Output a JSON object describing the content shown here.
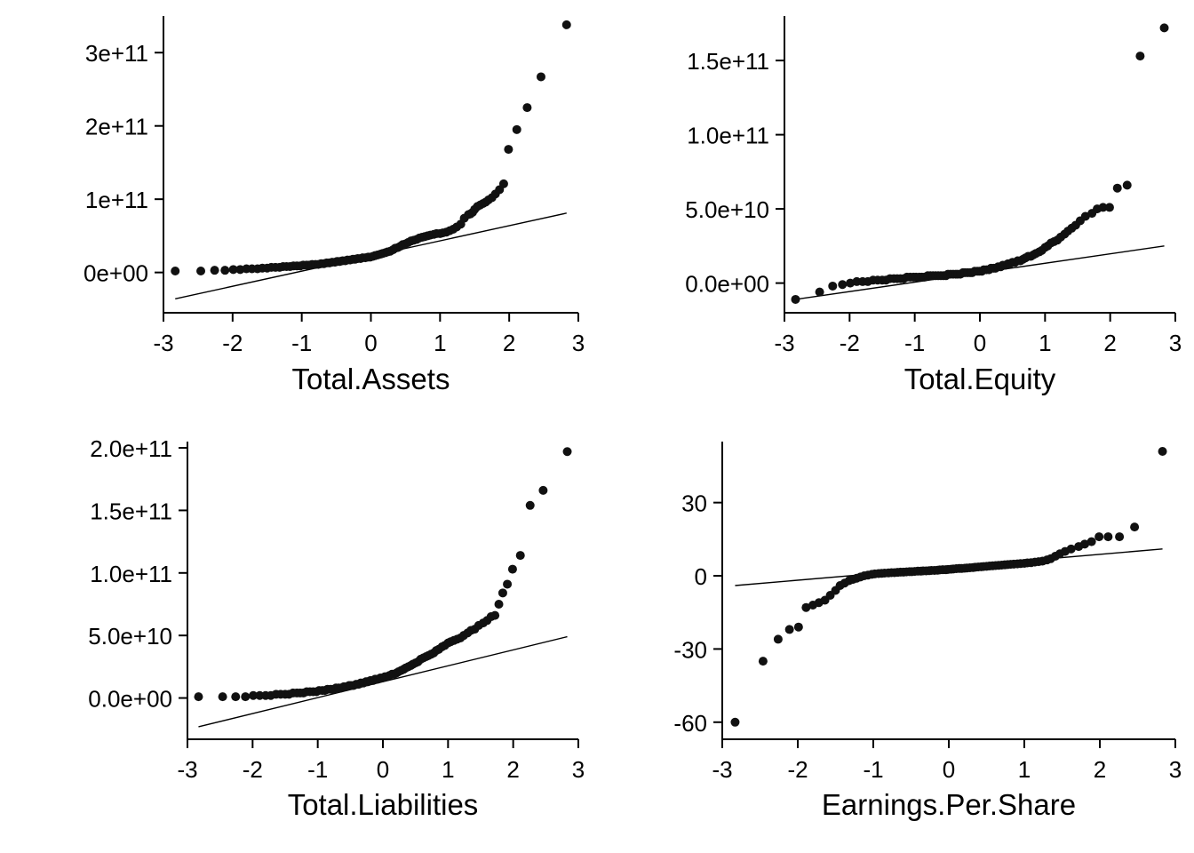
{
  "chart_data": [
    {
      "type": "scatter",
      "xlabel": "Total.Assets",
      "ylabel": "",
      "xticks": [
        "-3",
        "-2",
        "-1",
        "0",
        "1",
        "2",
        "3"
      ],
      "yticks": [
        "0e+00",
        "1e+11",
        "2e+11",
        "3e+11"
      ],
      "xlim": [
        -3.0,
        3.0
      ],
      "ylim": [
        -55000000000.0,
        350000000000.0
      ],
      "reference_line": [
        [
          -2.83,
          -36000000000.0
        ],
        [
          2.83,
          81000000000.0
        ]
      ],
      "points_x": [
        -2.83,
        -2.46,
        -2.26,
        -2.11,
        -1.99,
        -1.89,
        -1.8,
        -1.72,
        -1.64,
        -1.57,
        -1.5,
        -1.44,
        -1.38,
        -1.32,
        -1.27,
        -1.22,
        -1.17,
        -1.12,
        -1.07,
        -1.02,
        -0.98,
        -0.93,
        -0.89,
        -0.85,
        -0.8,
        -0.76,
        -0.72,
        -0.68,
        -0.64,
        -0.6,
        -0.56,
        -0.52,
        -0.49,
        -0.45,
        -0.41,
        -0.37,
        -0.34,
        -0.3,
        -0.26,
        -0.23,
        -0.19,
        -0.15,
        -0.12,
        -0.08,
        -0.04,
        -0.01,
        0.03,
        0.06,
        0.1,
        0.14,
        0.17,
        0.21,
        0.24,
        0.28,
        0.32,
        0.35,
        0.39,
        0.43,
        0.46,
        0.5,
        0.54,
        0.58,
        0.62,
        0.66,
        0.7,
        0.74,
        0.78,
        0.82,
        0.86,
        0.91,
        0.95,
        1.0,
        1.04,
        1.09,
        1.14,
        1.19,
        1.24,
        1.3,
        1.35,
        1.41,
        1.44,
        1.47,
        1.5,
        1.54,
        1.58,
        1.62,
        1.66,
        1.7,
        1.75,
        1.8,
        1.86,
        1.92,
        1.99,
        2.11,
        2.26,
        2.46,
        2.83
      ],
      "points_y": [
        2000000000.0,
        2000000000.0,
        3000000000.0,
        3000000000.0,
        4000000000.0,
        4000000000.0,
        5000000000.0,
        5000000000.0,
        5000000000.0,
        6000000000.0,
        6000000000.0,
        7000000000.0,
        7000000000.0,
        7000000000.0,
        8000000000.0,
        8000000000.0,
        8000000000.0,
        9000000000.0,
        9000000000.0,
        9000000000.0,
        10000000000.0,
        10000000000.0,
        10000000000.0,
        11000000000.0,
        11000000000.0,
        11000000000.0,
        12000000000.0,
        12000000000.0,
        13000000000.0,
        13000000000.0,
        14000000000.0,
        14000000000.0,
        15000000000.0,
        15000000000.0,
        16000000000.0,
        16000000000.0,
        17000000000.0,
        17000000000.0,
        18000000000.0,
        18000000000.0,
        19000000000.0,
        19000000000.0,
        20000000000.0,
        20000000000.0,
        21000000000.0,
        21000000000.0,
        22000000000.0,
        23000000000.0,
        24000000000.0,
        25000000000.0,
        26000000000.0,
        27000000000.0,
        28000000000.0,
        29000000000.0,
        31000000000.0,
        33000000000.0,
        34000000000.0,
        36000000000.0,
        38000000000.0,
        39000000000.0,
        41000000000.0,
        43000000000.0,
        44000000000.0,
        45000000000.0,
        47000000000.0,
        48000000000.0,
        49000000000.0,
        50000000000.0,
        51000000000.0,
        52000000000.0,
        53000000000.0,
        53000000000.0,
        54000000000.0,
        55000000000.0,
        57000000000.0,
        59000000000.0,
        62000000000.0,
        66000000000.0,
        74000000000.0,
        79000000000.0,
        80000000000.0,
        82000000000.0,
        86000000000.0,
        90000000000.0,
        92000000000.0,
        94000000000.0,
        96000000000.0,
        99000000000.0,
        102000000000.0,
        107000000000.0,
        113000000000.0,
        121000000000.0,
        168000000000.0,
        195000000000.0,
        225000000000.0,
        267000000000.0,
        338000000000.0
      ]
    },
    {
      "type": "scatter",
      "xlabel": "Total.Equity",
      "ylabel": "",
      "xticks": [
        "-3",
        "-2",
        "-1",
        "0",
        "1",
        "2",
        "3"
      ],
      "yticks": [
        "0.0e+00",
        "5.0e+10",
        "1.0e+11",
        "1.5e+11"
      ],
      "xlim": [
        -3.0,
        3.0
      ],
      "ylim": [
        -20000000000.0,
        180000000000.0
      ],
      "reference_line": [
        [
          -2.83,
          -11000000000.0
        ],
        [
          2.83,
          25000000000.0
        ]
      ],
      "points_x": [
        -2.83,
        -2.46,
        -2.26,
        -2.11,
        -1.99,
        -1.89,
        -1.8,
        -1.72,
        -1.64,
        -1.57,
        -1.5,
        -1.44,
        -1.38,
        -1.32,
        -1.27,
        -1.22,
        -1.17,
        -1.12,
        -1.07,
        -1.02,
        -0.98,
        -0.93,
        -0.89,
        -0.85,
        -0.8,
        -0.76,
        -0.72,
        -0.68,
        -0.64,
        -0.6,
        -0.56,
        -0.52,
        -0.49,
        -0.45,
        -0.41,
        -0.37,
        -0.34,
        -0.3,
        -0.26,
        -0.23,
        -0.19,
        -0.15,
        -0.12,
        -0.08,
        -0.04,
        -0.01,
        0.03,
        0.06,
        0.1,
        0.14,
        0.17,
        0.21,
        0.24,
        0.28,
        0.32,
        0.35,
        0.39,
        0.43,
        0.46,
        0.5,
        0.54,
        0.58,
        0.62,
        0.66,
        0.7,
        0.74,
        0.78,
        0.82,
        0.86,
        0.91,
        0.95,
        1.0,
        1.04,
        1.09,
        1.14,
        1.19,
        1.24,
        1.3,
        1.35,
        1.41,
        1.47,
        1.54,
        1.62,
        1.72,
        1.8,
        1.89,
        1.99,
        2.11,
        2.26,
        2.46,
        2.83
      ],
      "points_y": [
        -11000000000.0,
        -6000000000.0,
        -2000000000.0,
        -1000000000.0,
        0.0,
        1000000000.0,
        1000000000.0,
        1000000000.0,
        2000000000.0,
        2000000000.0,
        2000000000.0,
        2000000000.0,
        3000000000.0,
        3000000000.0,
        3000000000.0,
        3000000000.0,
        3000000000.0,
        4000000000.0,
        4000000000.0,
        4000000000.0,
        4000000000.0,
        4000000000.0,
        4000000000.0,
        4000000000.0,
        5000000000.0,
        5000000000.0,
        5000000000.0,
        5000000000.0,
        5000000000.0,
        5000000000.0,
        5000000000.0,
        5000000000.0,
        6000000000.0,
        6000000000.0,
        6000000000.0,
        6000000000.0,
        6000000000.0,
        6000000000.0,
        7000000000.0,
        7000000000.0,
        7000000000.0,
        7000000000.0,
        7000000000.0,
        8000000000.0,
        8000000000.0,
        8000000000.0,
        8000000000.0,
        9000000000.0,
        9000000000.0,
        9000000000.0,
        10000000000.0,
        10000000000.0,
        10000000000.0,
        11000000000.0,
        11000000000.0,
        12000000000.0,
        12000000000.0,
        13000000000.0,
        13000000000.0,
        14000000000.0,
        14000000000.0,
        15000000000.0,
        15000000000.0,
        16000000000.0,
        17000000000.0,
        18000000000.0,
        18000000000.0,
        19000000000.0,
        20000000000.0,
        21000000000.0,
        22000000000.0,
        24000000000.0,
        25000000000.0,
        27000000000.0,
        28000000000.0,
        29000000000.0,
        31000000000.0,
        33000000000.0,
        35000000000.0,
        37000000000.0,
        39000000000.0,
        42000000000.0,
        45000000000.0,
        47000000000.0,
        50000000000.0,
        51000000000.0,
        51000000000.0,
        64000000000.0,
        66000000000.0,
        153000000000.0,
        172000000000.0
      ]
    },
    {
      "type": "scatter",
      "xlabel": "Total.Liabilities",
      "ylabel": "",
      "xticks": [
        "-3",
        "-2",
        "-1",
        "0",
        "1",
        "2",
        "3"
      ],
      "yticks": [
        "0.0e+00",
        "5.0e+10",
        "1.0e+11",
        "1.5e+11",
        "2.0e+11"
      ],
      "xlim": [
        -3.0,
        3.0
      ],
      "ylim": [
        -33000000000.0,
        205000000000.0
      ],
      "reference_line": [
        [
          -2.83,
          -23000000000.0
        ],
        [
          2.83,
          49000000000.0
        ]
      ],
      "points_x": [
        -2.83,
        -2.46,
        -2.26,
        -2.11,
        -1.99,
        -1.89,
        -1.8,
        -1.72,
        -1.64,
        -1.57,
        -1.5,
        -1.44,
        -1.38,
        -1.32,
        -1.27,
        -1.22,
        -1.17,
        -1.12,
        -1.07,
        -1.02,
        -0.98,
        -0.93,
        -0.89,
        -0.85,
        -0.8,
        -0.76,
        -0.72,
        -0.68,
        -0.64,
        -0.6,
        -0.56,
        -0.52,
        -0.49,
        -0.45,
        -0.41,
        -0.37,
        -0.34,
        -0.3,
        -0.26,
        -0.23,
        -0.19,
        -0.15,
        -0.12,
        -0.08,
        -0.04,
        -0.01,
        0.03,
        0.06,
        0.1,
        0.14,
        0.17,
        0.21,
        0.24,
        0.28,
        0.32,
        0.35,
        0.39,
        0.43,
        0.46,
        0.5,
        0.54,
        0.58,
        0.62,
        0.66,
        0.7,
        0.74,
        0.78,
        0.82,
        0.86,
        0.91,
        0.95,
        1.0,
        1.04,
        1.09,
        1.14,
        1.19,
        1.24,
        1.3,
        1.35,
        1.41,
        1.47,
        1.54,
        1.6,
        1.66,
        1.72,
        1.78,
        1.84,
        1.91,
        1.99,
        2.11,
        2.26,
        2.46,
        2.83
      ],
      "points_y": [
        1000000000.0,
        1000000000.0,
        1000000000.0,
        1000000000.0,
        2000000000.0,
        2000000000.0,
        2000000000.0,
        2000000000.0,
        3000000000.0,
        3000000000.0,
        3000000000.0,
        3000000000.0,
        4000000000.0,
        4000000000.0,
        4000000000.0,
        4000000000.0,
        5000000000.0,
        5000000000.0,
        5000000000.0,
        5000000000.0,
        6000000000.0,
        6000000000.0,
        6000000000.0,
        7000000000.0,
        7000000000.0,
        7000000000.0,
        8000000000.0,
        8000000000.0,
        8000000000.0,
        9000000000.0,
        9000000000.0,
        10000000000.0,
        10000000000.0,
        10000000000.0,
        11000000000.0,
        11000000000.0,
        12000000000.0,
        12000000000.0,
        13000000000.0,
        13000000000.0,
        14000000000.0,
        14000000000.0,
        15000000000.0,
        15000000000.0,
        16000000000.0,
        16000000000.0,
        17000000000.0,
        17000000000.0,
        18000000000.0,
        19000000000.0,
        19000000000.0,
        20000000000.0,
        21000000000.0,
        22000000000.0,
        23000000000.0,
        24000000000.0,
        25000000000.0,
        26000000000.0,
        27000000000.0,
        28000000000.0,
        29000000000.0,
        31000000000.0,
        32000000000.0,
        33000000000.0,
        34000000000.0,
        35000000000.0,
        36000000000.0,
        38000000000.0,
        39000000000.0,
        41000000000.0,
        42000000000.0,
        44000000000.0,
        45000000000.0,
        46000000000.0,
        47000000000.0,
        48000000000.0,
        50000000000.0,
        52000000000.0,
        54000000000.0,
        55000000000.0,
        58000000000.0,
        60000000000.0,
        62000000000.0,
        65000000000.0,
        66000000000.0,
        75000000000.0,
        84000000000.0,
        91000000000.0,
        103000000000.0,
        114000000000.0,
        154000000000.0,
        166000000000.0,
        197000000000.0
      ]
    },
    {
      "type": "scatter",
      "xlabel": "Earnings.Per.Share",
      "ylabel": "",
      "xticks": [
        "-3",
        "-2",
        "-1",
        "0",
        "1",
        "2",
        "3"
      ],
      "yticks": [
        "-60",
        "-30",
        "0",
        "30"
      ],
      "xlim": [
        -3.0,
        3.0
      ],
      "ylim": [
        -67,
        55
      ],
      "reference_line": [
        [
          -2.83,
          -4
        ],
        [
          2.83,
          11
        ]
      ],
      "points_x": [
        -2.83,
        -2.46,
        -2.26,
        -2.11,
        -1.99,
        -1.89,
        -1.8,
        -1.72,
        -1.64,
        -1.57,
        -1.5,
        -1.44,
        -1.38,
        -1.32,
        -1.27,
        -1.22,
        -1.17,
        -1.12,
        -1.07,
        -1.02,
        -0.98,
        -0.93,
        -0.89,
        -0.85,
        -0.8,
        -0.76,
        -0.72,
        -0.68,
        -0.64,
        -0.6,
        -0.56,
        -0.52,
        -0.49,
        -0.45,
        -0.41,
        -0.37,
        -0.34,
        -0.3,
        -0.26,
        -0.23,
        -0.19,
        -0.15,
        -0.12,
        -0.08,
        -0.04,
        -0.01,
        0.03,
        0.06,
        0.1,
        0.14,
        0.17,
        0.21,
        0.24,
        0.28,
        0.32,
        0.35,
        0.39,
        0.43,
        0.46,
        0.5,
        0.54,
        0.58,
        0.62,
        0.66,
        0.7,
        0.74,
        0.78,
        0.82,
        0.86,
        0.91,
        0.95,
        1.0,
        1.04,
        1.09,
        1.14,
        1.19,
        1.24,
        1.3,
        1.35,
        1.41,
        1.47,
        1.54,
        1.62,
        1.72,
        1.8,
        1.89,
        1.99,
        2.11,
        2.26,
        2.46,
        2.83
      ],
      "points_y": [
        -60.0,
        -35.0,
        -26.0,
        -22.0,
        -21.0,
        -13.0,
        -12.0,
        -11.0,
        -10.0,
        -8.0,
        -6.0,
        -4.0,
        -3.0,
        -2.0,
        -1.5,
        -1.0,
        -0.5,
        0.0,
        0.3,
        0.6,
        0.8,
        0.9,
        1.0,
        1.1,
        1.2,
        1.3,
        1.3,
        1.4,
        1.5,
        1.5,
        1.6,
        1.7,
        1.7,
        1.8,
        1.9,
        1.9,
        2.0,
        2.0,
        2.1,
        2.2,
        2.2,
        2.3,
        2.4,
        2.5,
        2.5,
        2.6,
        2.7,
        2.8,
        2.9,
        3.0,
        3.0,
        3.1,
        3.2,
        3.3,
        3.4,
        3.5,
        3.6,
        3.7,
        3.8,
        3.9,
        4.0,
        4.1,
        4.2,
        4.3,
        4.4,
        4.5,
        4.6,
        4.7,
        4.8,
        4.9,
        5.0,
        5.1,
        5.3,
        5.4,
        5.6,
        5.8,
        6.0,
        6.5,
        7.0,
        8.0,
        9.0,
        10.0,
        11.0,
        12.0,
        13.0,
        14.0,
        16.0,
        16.0,
        16.0,
        20.0,
        51.0
      ]
    }
  ]
}
